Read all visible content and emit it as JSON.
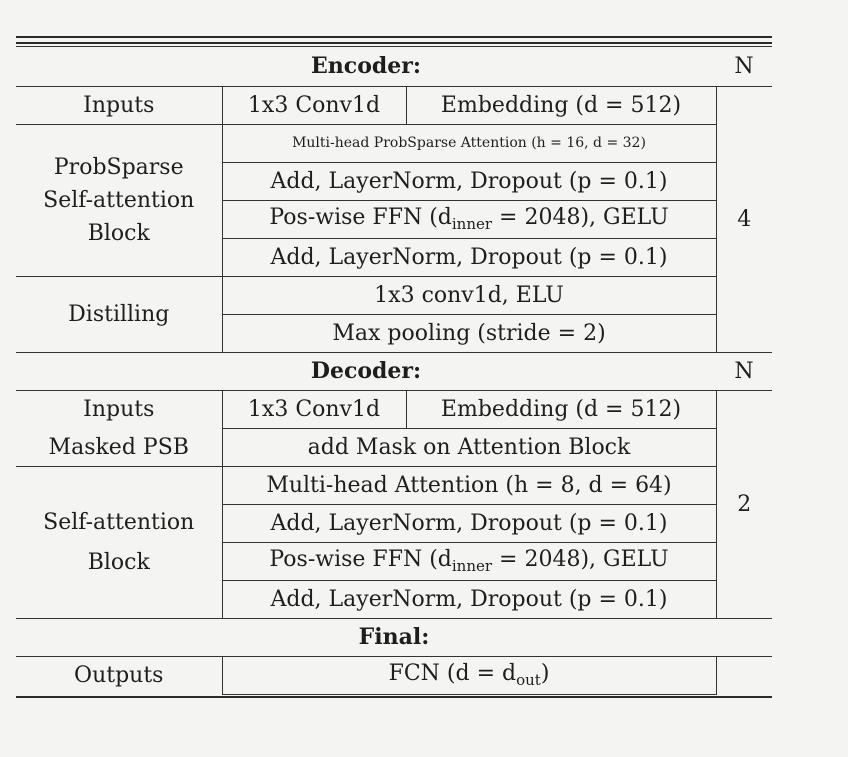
{
  "encoder": {
    "title": "Encoder:",
    "n_header": "N",
    "inputs_label": "Inputs",
    "conv": "1x3 Conv1d",
    "embedding": "Embedding (d = 512)",
    "psb_label_1": "ProbSparse",
    "psb_label_2": "Self-attention",
    "psb_label_3": "Block",
    "attn": "Multi-head ProbSparse Attention (h = 16, d = 32)",
    "add1": "Add, LayerNorm, Dropout (p = 0.1)",
    "ffn": "Pos-wise FFN (d",
    "ffn_sub": "inner",
    "ffn_rest": " = 2048), GELU",
    "add2": "Add, LayerNorm, Dropout (p = 0.1)",
    "n_value": "4",
    "distill_label": "Distilling",
    "distill_conv": "1x3 conv1d, ELU",
    "maxpool": "Max pooling (stride = 2)"
  },
  "decoder": {
    "title": "Decoder:",
    "n_header": "N",
    "inputs_label": "Inputs",
    "conv": "1x3 Conv1d",
    "embedding": "Embedding (d = 512)",
    "masked_label": "Masked PSB",
    "masked_value": "add Mask on Attention Block",
    "sa_label_1": "Self-attention",
    "sa_label_2": "Block",
    "attn": "Multi-head Attention (h = 8, d = 64)",
    "add1": "Add, LayerNorm, Dropout (p = 0.1)",
    "ffn": "Pos-wise FFN (d",
    "ffn_sub": "inner",
    "ffn_rest": " = 2048), GELU",
    "add2": "Add, LayerNorm, Dropout (p = 0.1)",
    "n_value": "2"
  },
  "final": {
    "title": "Final:",
    "outputs_label": "Outputs",
    "fcn": "FCN (d = d",
    "fcn_sub": "out",
    "fcn_close": ")"
  }
}
